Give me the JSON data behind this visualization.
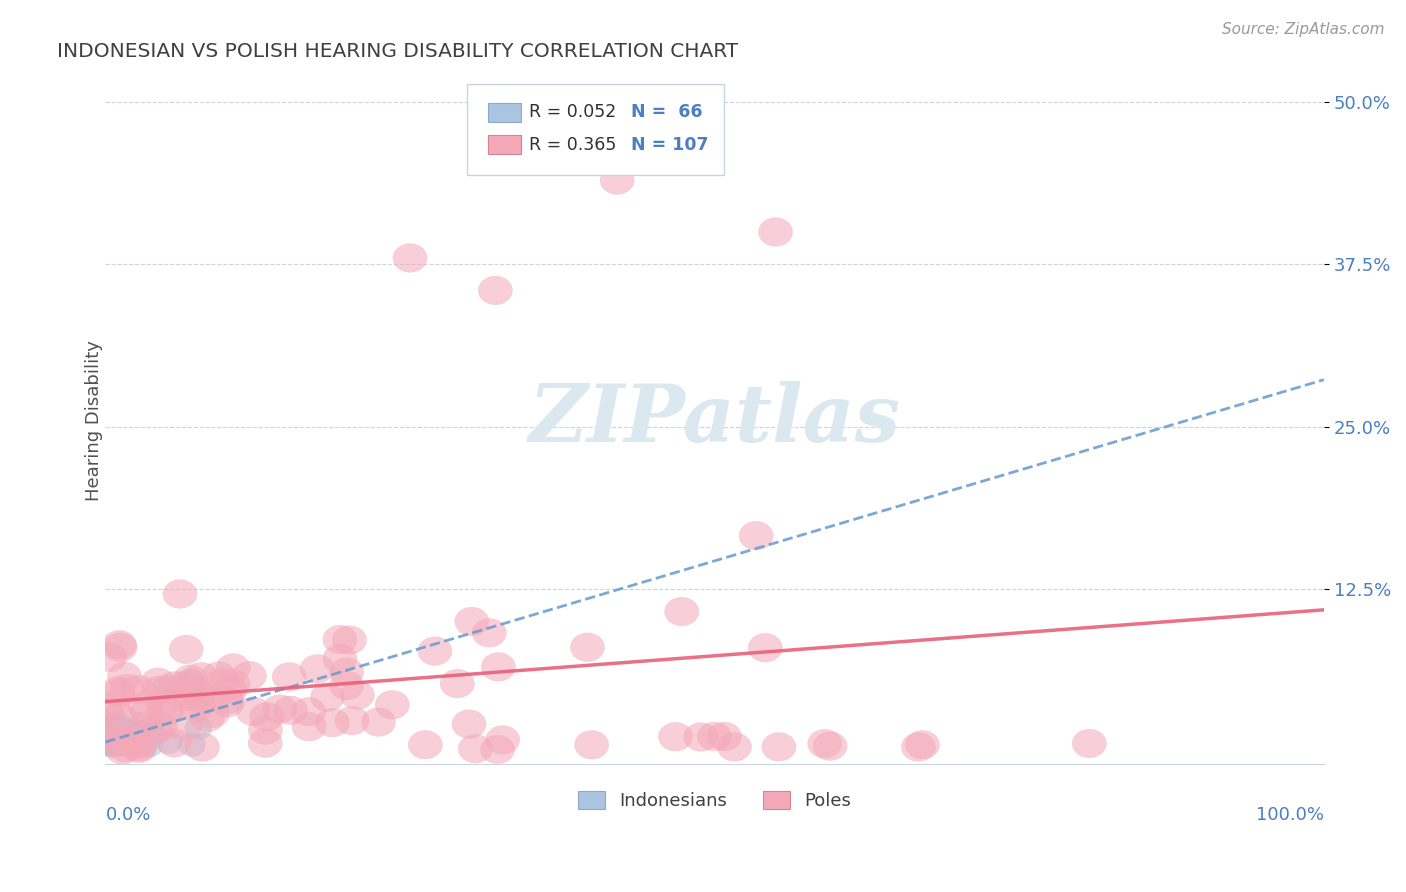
{
  "title": "INDONESIAN VS POLISH HEARING DISABILITY CORRELATION CHART",
  "source": "Source: ZipAtlas.com",
  "ylabel": "Hearing Disability",
  "xlim": [
    0.0,
    1.0
  ],
  "ylim": [
    -0.01,
    0.52
  ],
  "ytick_labels": [
    "12.5%",
    "25.0%",
    "37.5%",
    "50.0%"
  ],
  "ytick_values": [
    0.125,
    0.25,
    0.375,
    0.5
  ],
  "blue_color": "#aac4e2",
  "pink_color": "#f4a8b8",
  "blue_line_color": "#6699cc",
  "pink_line_color": "#e8607a",
  "axis_label_color": "#4a7fc1",
  "grid_color": "#c8d4e0",
  "title_color": "#404040",
  "source_color": "#999999",
  "watermark_color": "#dce8f0",
  "legend_r1": "R = 0.052",
  "legend_n1": "N =  66",
  "legend_r2": "R = 0.365",
  "legend_n2": "N = 107"
}
